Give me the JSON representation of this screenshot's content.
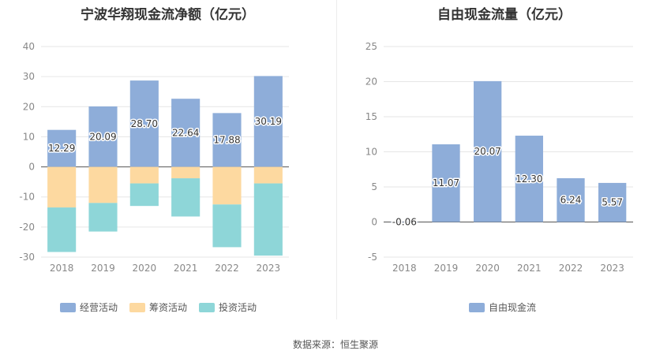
{
  "source": "数据来源：恒生聚源",
  "chart_data": [
    {
      "type": "bar",
      "stacked": true,
      "title": "宁波华翔现金流净额（亿元）",
      "categories": [
        "2018",
        "2019",
        "2020",
        "2021",
        "2022",
        "2023"
      ],
      "ylim": [
        -30,
        40
      ],
      "yticks": [
        -30,
        -20,
        -10,
        0,
        10,
        20,
        30,
        40
      ],
      "grid": true,
      "legend_position": "bottom",
      "series": [
        {
          "name": "经营活动",
          "color": "#8eadd9",
          "values": [
            12.29,
            20.09,
            28.7,
            22.64,
            17.88,
            30.19
          ],
          "labels": [
            "12.29",
            "20.09",
            "28.70",
            "22.64",
            "17.88",
            "30.19"
          ]
        },
        {
          "name": "筹资活动",
          "color": "#fdd9a0",
          "values": [
            -13.5,
            -12.0,
            -5.5,
            -3.8,
            -12.5,
            -5.5
          ]
        },
        {
          "name": "投资活动",
          "color": "#8ed6d8",
          "values": [
            -14.8,
            -9.5,
            -7.5,
            -12.7,
            -14.2,
            -24.0
          ]
        }
      ]
    },
    {
      "type": "bar",
      "title": "自由现金流量（亿元）",
      "categories": [
        "2018",
        "2019",
        "2020",
        "2021",
        "2022",
        "2023"
      ],
      "ylim": [
        -5,
        25
      ],
      "yticks": [
        -5,
        0,
        5,
        10,
        15,
        20,
        25
      ],
      "grid": true,
      "legend_position": "bottom",
      "series": [
        {
          "name": "自由现金流",
          "color": "#8eadd9",
          "values": [
            -0.06,
            11.07,
            20.07,
            12.3,
            6.24,
            5.57
          ],
          "labels": [
            "-0.06",
            "11.07",
            "20.07",
            "12.30",
            "6.24",
            "5.57"
          ]
        }
      ]
    }
  ]
}
